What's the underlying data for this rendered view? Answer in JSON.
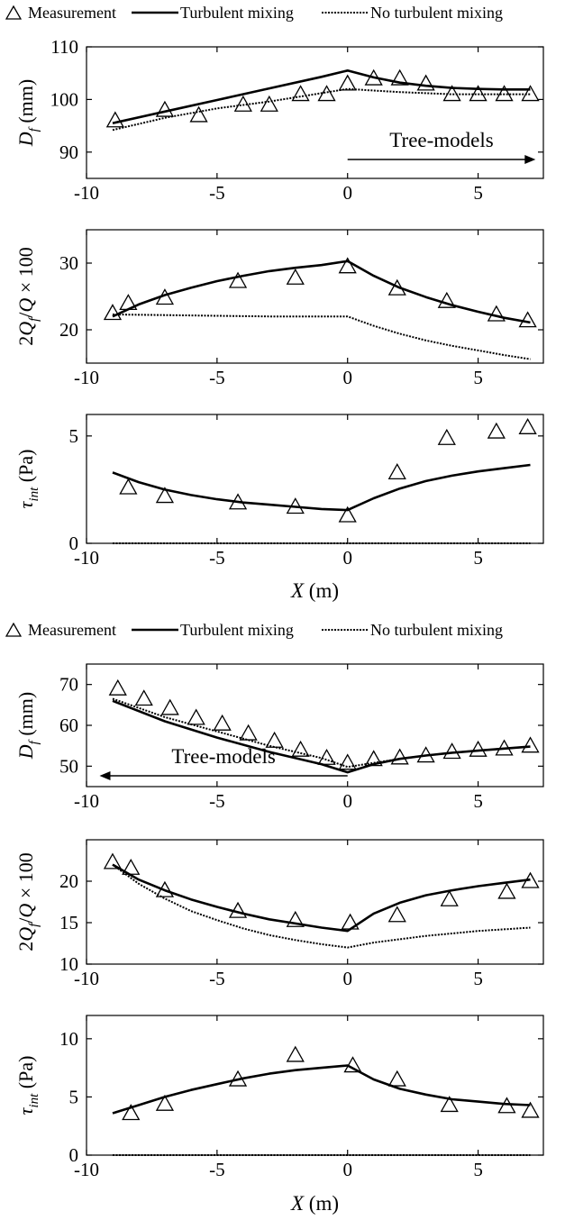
{
  "legend": {
    "measurement": "Measurement",
    "turbulent": "Turbulent mixing",
    "no_turbulent": "No turbulent mixing"
  },
  "xlabel": "X (m)",
  "chart_data": [
    {
      "type": "line",
      "group": 1,
      "ylabel": "Df (mm)",
      "xlim": [
        -10,
        7.5
      ],
      "ylim": [
        85,
        110
      ],
      "yticks": [
        90,
        100,
        110
      ],
      "xticks": [
        -10,
        -5,
        0,
        5
      ],
      "annotation": "Tree-models",
      "arrow": "right",
      "series": [
        {
          "name": "Measurement",
          "x": [
            -8.9,
            -7,
            -5.7,
            -4,
            -3,
            -1.8,
            -0.8,
            0,
            1,
            2,
            3,
            4,
            5,
            6,
            7
          ],
          "y": [
            96,
            98,
            97,
            99,
            99,
            101,
            101,
            103,
            104,
            104,
            103,
            101,
            101,
            101,
            101
          ]
        },
        {
          "name": "Turbulent mixing",
          "x": [
            -9,
            -7,
            -5,
            -3,
            -1,
            0,
            1,
            2,
            3,
            4,
            5,
            6,
            7
          ],
          "y": [
            95.5,
            97.7,
            99.9,
            102.1,
            104.3,
            105.5,
            104.2,
            103.2,
            102.6,
            102.2,
            102,
            101.9,
            101.9
          ]
        },
        {
          "name": "No turbulent mixing",
          "x": [
            -9,
            -7,
            -5,
            -3,
            -1,
            0,
            1,
            2,
            3,
            4,
            5,
            6,
            7
          ],
          "y": [
            94.2,
            96.5,
            98.3,
            99.6,
            101.2,
            102,
            101.7,
            101.4,
            101.2,
            101,
            101,
            101,
            101
          ]
        }
      ]
    },
    {
      "type": "line",
      "group": 1,
      "ylabel": "2Qf/Q × 100",
      "xlim": [
        -10,
        7.5
      ],
      "ylim": [
        15,
        35
      ],
      "yticks": [
        20,
        30
      ],
      "xticks": [
        -10,
        -5,
        0,
        5
      ],
      "series": [
        {
          "name": "Measurement",
          "x": [
            -9,
            -8.4,
            -7,
            -4.2,
            -2,
            0,
            1.9,
            3.8,
            5.7,
            6.9
          ],
          "y": [
            22.5,
            24,
            24.8,
            27.3,
            27.8,
            29.5,
            26.2,
            24.3,
            22.3,
            21.4
          ]
        },
        {
          "name": "Turbulent mixing",
          "x": [
            -9,
            -8,
            -7,
            -6,
            -5,
            -4,
            -3,
            -2,
            -1,
            0,
            1,
            2,
            3,
            4,
            5,
            6,
            7
          ],
          "y": [
            22,
            23.8,
            25.2,
            26.3,
            27.3,
            28.1,
            28.8,
            29.3,
            29.7,
            30.3,
            28.1,
            26.3,
            24.9,
            23.7,
            22.7,
            21.8,
            21.1
          ]
        },
        {
          "name": "No turbulent mixing",
          "x": [
            -9,
            -7,
            -5,
            -3,
            -1,
            0,
            1,
            2,
            3,
            4,
            5,
            6,
            7
          ],
          "y": [
            22.3,
            22.2,
            22.1,
            22,
            22,
            22,
            20.6,
            19.4,
            18.4,
            17.6,
            16.9,
            16.2,
            15.6
          ]
        }
      ]
    },
    {
      "type": "line",
      "group": 1,
      "ylabel": "τint (Pa)",
      "xlim": [
        -10,
        7.5
      ],
      "ylim": [
        0,
        6
      ],
      "yticks": [
        0,
        5
      ],
      "xticks": [
        -10,
        -5,
        0,
        5
      ],
      "series": [
        {
          "name": "Measurement",
          "x": [
            -8.4,
            -7,
            -4.2,
            -2,
            0,
            1.9,
            3.8,
            5.7,
            6.9
          ],
          "y": [
            2.6,
            2.2,
            1.9,
            1.7,
            1.3,
            3.3,
            4.9,
            5.2,
            5.4
          ]
        },
        {
          "name": "Turbulent mixing",
          "x": [
            -9,
            -8,
            -7,
            -6,
            -5,
            -4,
            -3,
            -2,
            -1,
            0,
            1,
            2,
            3,
            4,
            5,
            6,
            7
          ],
          "y": [
            3.3,
            2.85,
            2.5,
            2.25,
            2.05,
            1.9,
            1.8,
            1.7,
            1.6,
            1.55,
            2.1,
            2.55,
            2.9,
            3.15,
            3.35,
            3.5,
            3.65
          ]
        },
        {
          "name": "No turbulent mixing",
          "x": [
            -9,
            7
          ],
          "y": [
            0,
            0
          ]
        }
      ]
    },
    {
      "type": "line",
      "group": 2,
      "ylabel": "Df (mm)",
      "xlim": [
        -10,
        7.5
      ],
      "ylim": [
        45,
        75
      ],
      "yticks": [
        50,
        60,
        70
      ],
      "xticks": [
        -10,
        -5,
        0,
        5
      ],
      "annotation": "Tree-models",
      "arrow": "left",
      "series": [
        {
          "name": "Measurement",
          "x": [
            -8.8,
            -7.8,
            -6.8,
            -5.8,
            -4.8,
            -3.8,
            -2.8,
            -1.8,
            -0.8,
            0,
            1,
            2,
            3,
            4,
            5,
            6,
            7
          ],
          "y": [
            69,
            66.5,
            64.2,
            61.8,
            60.4,
            58,
            56.2,
            54,
            52,
            50.8,
            51.7,
            52.1,
            52.6,
            53.5,
            54,
            54.3,
            55
          ]
        },
        {
          "name": "Turbulent mixing",
          "x": [
            -9,
            -7,
            -5,
            -3,
            -1,
            0,
            1,
            2,
            3,
            4,
            5,
            6,
            7
          ],
          "y": [
            66,
            61,
            57,
            53.5,
            50.5,
            48.5,
            50.5,
            51.8,
            52.6,
            53.3,
            53.8,
            54.3,
            54.8
          ]
        },
        {
          "name": "No turbulent mixing",
          "x": [
            -9,
            -7,
            -5,
            -3,
            -1,
            0,
            1,
            2,
            3,
            4,
            5,
            6,
            7
          ],
          "y": [
            66.5,
            62,
            58.5,
            55,
            52,
            49.8,
            50.8,
            51.8,
            52.6,
            53.3,
            53.8,
            54.3,
            54.8
          ]
        }
      ]
    },
    {
      "type": "line",
      "group": 2,
      "ylabel": "2Qf/Q × 100",
      "xlim": [
        -10,
        7.5
      ],
      "ylim": [
        10,
        25
      ],
      "yticks": [
        10,
        15,
        20
      ],
      "xticks": [
        -10,
        -5,
        0,
        5
      ],
      "series": [
        {
          "name": "Measurement",
          "x": [
            -9,
            -8.3,
            -7,
            -4.2,
            -2,
            0.1,
            1.9,
            3.9,
            6.1,
            7
          ],
          "y": [
            22.3,
            21.6,
            18.9,
            16.4,
            15.3,
            15,
            15.9,
            17.8,
            18.7,
            20
          ]
        },
        {
          "name": "Turbulent mixing",
          "x": [
            -9,
            -8,
            -7,
            -6,
            -5,
            -4,
            -3,
            -2,
            -1,
            0,
            1,
            2,
            3,
            4,
            5,
            6,
            7
          ],
          "y": [
            22,
            20.2,
            18.9,
            17.8,
            16.9,
            16.1,
            15.4,
            14.9,
            14.4,
            14,
            16.1,
            17.4,
            18.3,
            18.9,
            19.4,
            19.8,
            20.2
          ]
        },
        {
          "name": "No turbulent mixing",
          "x": [
            -9,
            -8,
            -7,
            -6,
            -5,
            -4,
            -3,
            -2,
            -1,
            0,
            1,
            2,
            3,
            4,
            5,
            6,
            7
          ],
          "y": [
            22,
            19.7,
            17.9,
            16.4,
            15.3,
            14.3,
            13.5,
            12.9,
            12.4,
            12,
            12.6,
            13,
            13.4,
            13.7,
            14,
            14.2,
            14.4
          ]
        }
      ]
    },
    {
      "type": "line",
      "group": 2,
      "ylabel": "τint (Pa)",
      "xlim": [
        -10,
        7.5
      ],
      "ylim": [
        0,
        12
      ],
      "yticks": [
        0,
        5,
        10
      ],
      "xticks": [
        -10,
        -5,
        0,
        5
      ],
      "series": [
        {
          "name": "Measurement",
          "x": [
            -8.3,
            -7,
            -4.2,
            -2,
            0.2,
            1.9,
            3.9,
            6.1,
            7
          ],
          "y": [
            3.6,
            4.4,
            6.5,
            8.6,
            7.7,
            6.5,
            4.3,
            4.2,
            3.8
          ]
        },
        {
          "name": "Turbulent mixing",
          "x": [
            -9,
            -8,
            -7,
            -6,
            -5,
            -4,
            -3,
            -2,
            -1,
            0,
            1,
            2,
            3,
            4,
            5,
            6,
            7
          ],
          "y": [
            3.6,
            4.3,
            5,
            5.6,
            6.1,
            6.6,
            7,
            7.3,
            7.5,
            7.7,
            6.5,
            5.7,
            5.2,
            4.8,
            4.6,
            4.4,
            4.3
          ]
        },
        {
          "name": "No turbulent mixing",
          "x": [
            -9,
            7
          ],
          "y": [
            0,
            0
          ]
        }
      ]
    }
  ]
}
